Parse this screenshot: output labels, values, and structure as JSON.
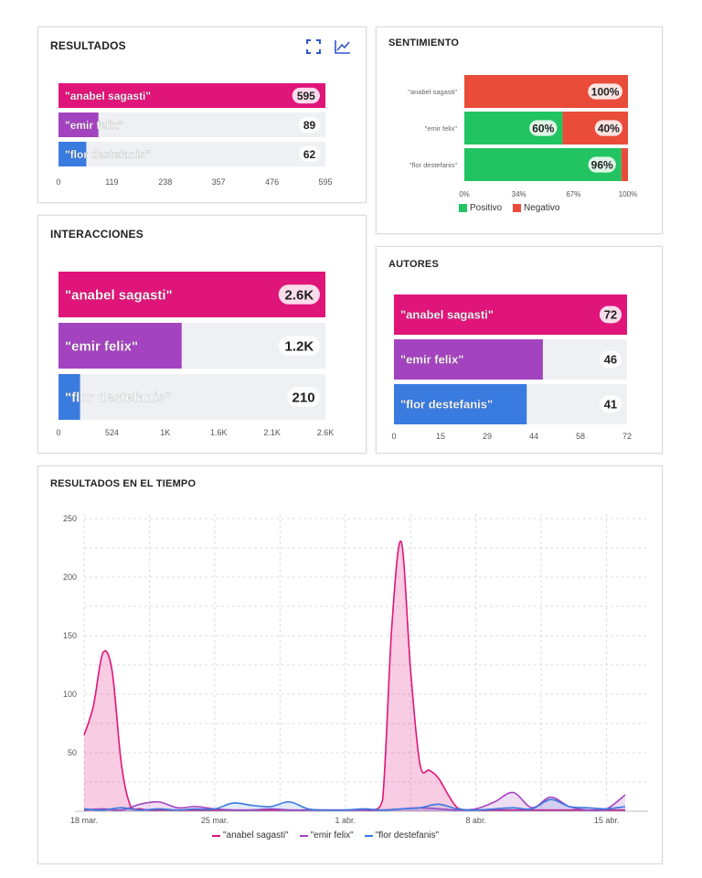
{
  "colors": {
    "anabel": "#e0157a",
    "emir": "#a443bf",
    "flor": "#3a7be0",
    "track": "#eef0f3",
    "positivo": "#21c461",
    "negativo": "#ea4c3a",
    "grid": "#dcdcdc"
  },
  "icons": {
    "expand": "expand-icon",
    "trend": "line-chart-icon"
  },
  "chart_data": [
    {
      "id": "resultados",
      "type": "bar",
      "title": "RESULTADOS",
      "categories": [
        "\"anabel sagasti\"",
        "\"emir felix\"",
        "\"flor destefanis\""
      ],
      "values": [
        595,
        89,
        62
      ],
      "value_labels": [
        "595",
        "89",
        "62"
      ],
      "xlim": [
        0,
        595
      ],
      "xticks": [
        "0",
        "119",
        "238",
        "357",
        "476",
        "595"
      ]
    },
    {
      "id": "sentimiento",
      "type": "bar",
      "stacked": true,
      "title": "SENTIMIENTO",
      "categories": [
        "\"anabel sagasti\"",
        "\"emir felix\"",
        "\"flor destefanis\""
      ],
      "series": [
        {
          "name": "Positivo",
          "values": [
            0,
            60,
            96
          ]
        },
        {
          "name": "Negativo",
          "values": [
            100,
            40,
            4
          ]
        }
      ],
      "segment_labels": [
        {
          "row": 0,
          "series": 1,
          "label": "100%"
        },
        {
          "row": 1,
          "series": 0,
          "label": "60%"
        },
        {
          "row": 1,
          "series": 1,
          "label": "40%"
        },
        {
          "row": 2,
          "series": 0,
          "label": "96%"
        }
      ],
      "xlim": [
        0,
        100
      ],
      "xticks": [
        "0%",
        "34%",
        "67%",
        "100%"
      ],
      "legend": "bottom-left"
    },
    {
      "id": "interacciones",
      "type": "bar",
      "title": "INTERACCIONES",
      "categories": [
        "\"anabel sagasti\"",
        "\"emir felix\"",
        "\"flor destefanis\""
      ],
      "values": [
        2600,
        1200,
        210
      ],
      "value_labels": [
        "2.6K",
        "1.2K",
        "210"
      ],
      "xlim": [
        0,
        2600
      ],
      "xticks": [
        "0",
        "524",
        "1K",
        "1.6K",
        "2.1K",
        "2.6K"
      ]
    },
    {
      "id": "autores",
      "type": "bar",
      "title": "AUTORES",
      "categories": [
        "\"anabel sagasti\"",
        "\"emir felix\"",
        "\"flor destefanis\""
      ],
      "values": [
        72,
        46,
        41
      ],
      "value_labels": [
        "72",
        "46",
        "41"
      ],
      "xlim": [
        0,
        72
      ],
      "xticks": [
        "0",
        "15",
        "29",
        "44",
        "58",
        "72"
      ]
    },
    {
      "id": "tiempo",
      "type": "area",
      "title": "RESULTADOS EN EL TIEMPO",
      "x_start": "18 mar.",
      "x_end": "16 abr.",
      "xticks": [
        {
          "pos": 0,
          "label": "18 mar."
        },
        {
          "pos": 7,
          "label": "25 mar."
        },
        {
          "pos": 14,
          "label": "1 abr."
        },
        {
          "pos": 21,
          "label": "8 abr."
        },
        {
          "pos": 28,
          "label": "15 abr."
        }
      ],
      "ylim": [
        0,
        250
      ],
      "yticks": [
        "50",
        "100",
        "150",
        "200",
        "250"
      ],
      "legend": "bottom-center",
      "series": [
        {
          "name": "\"anabel sagasti\"",
          "x": [
            0,
            0.5,
            1,
            1.5,
            2,
            2.5,
            3,
            3.5,
            4,
            5,
            6,
            7,
            8,
            9,
            10,
            11,
            12,
            13,
            14,
            15,
            15.5,
            16,
            16.5,
            17,
            17.5,
            18,
            18.5,
            19,
            20,
            21,
            22,
            23,
            24,
            25,
            26,
            27,
            28,
            29
          ],
          "y": [
            65,
            90,
            135,
            120,
            40,
            4,
            2,
            1,
            1,
            1,
            1,
            1,
            1,
            1,
            1,
            1,
            1,
            1,
            1,
            1,
            1,
            10,
            160,
            230,
            120,
            40,
            35,
            28,
            3,
            1,
            1,
            1,
            1,
            1,
            1,
            1,
            1,
            1
          ]
        },
        {
          "name": "\"emir felix\"",
          "x": [
            0,
            1,
            2,
            3,
            4,
            5,
            6,
            7,
            8,
            9,
            10,
            11,
            12,
            13,
            14,
            15,
            16,
            17,
            18,
            19,
            20,
            21,
            22,
            23,
            24,
            25,
            26,
            27,
            28,
            29
          ],
          "y": [
            1,
            2,
            1,
            6,
            8,
            3,
            4,
            2,
            1,
            1,
            2,
            1,
            1,
            1,
            1,
            1,
            1,
            2,
            3,
            2,
            1,
            2,
            8,
            16,
            3,
            12,
            4,
            1,
            2,
            14
          ]
        },
        {
          "name": "\"flor destefanis\"",
          "x": [
            0,
            1,
            2,
            3,
            4,
            5,
            6,
            7,
            8,
            9,
            10,
            11,
            12,
            13,
            14,
            15,
            16,
            17,
            18,
            19,
            20,
            21,
            22,
            23,
            24,
            25,
            26,
            27,
            28,
            29
          ],
          "y": [
            2,
            1,
            3,
            1,
            2,
            1,
            2,
            2,
            7,
            5,
            4,
            8,
            2,
            1,
            1,
            2,
            1,
            2,
            3,
            6,
            2,
            1,
            2,
            3,
            2,
            10,
            4,
            3,
            2,
            4
          ]
        }
      ]
    }
  ]
}
